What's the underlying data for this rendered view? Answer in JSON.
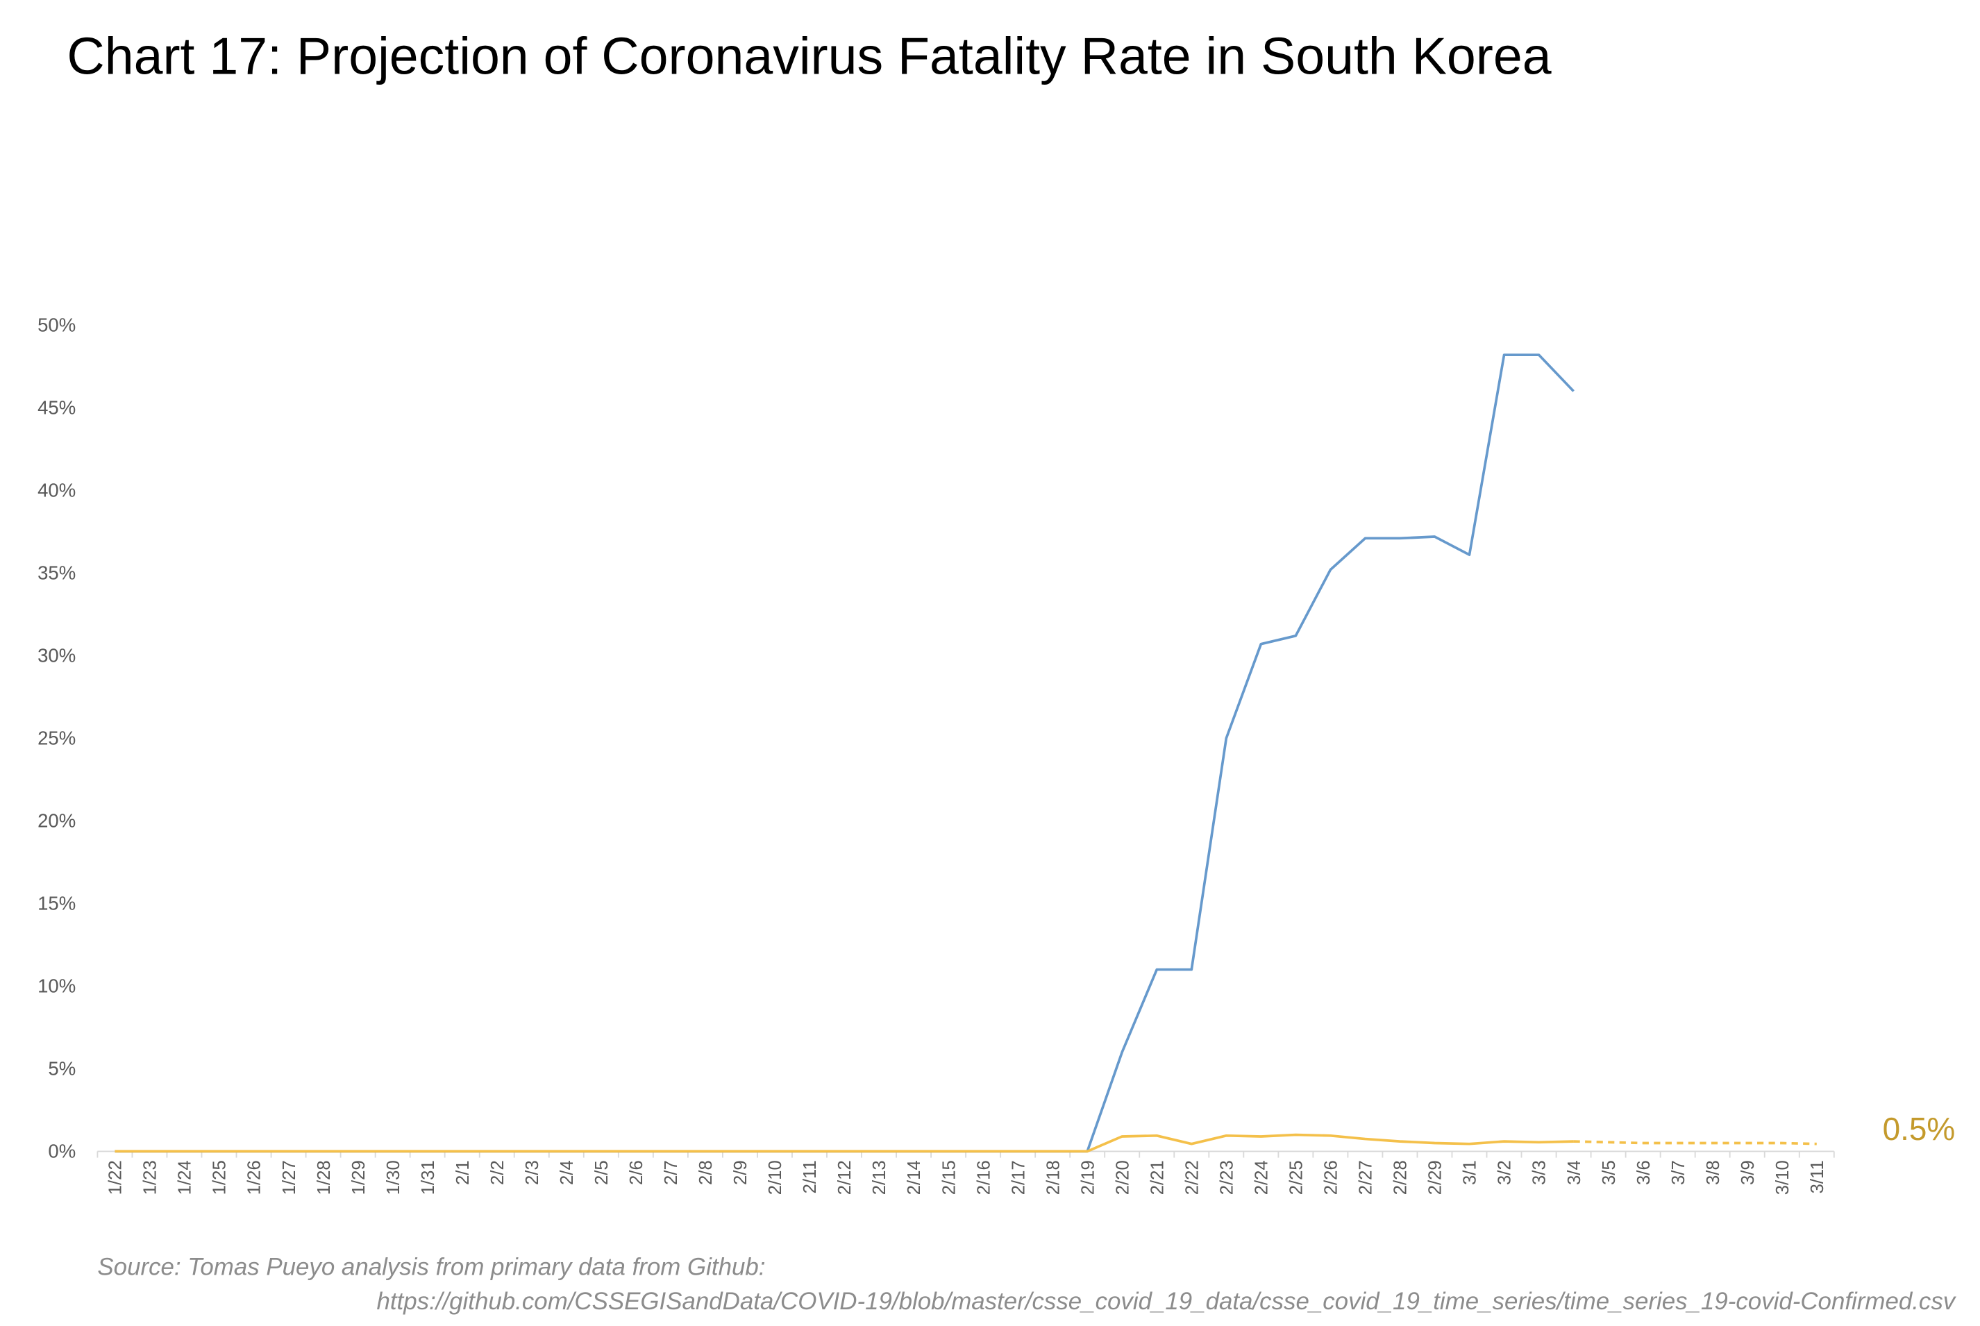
{
  "chart_data": {
    "type": "line",
    "title": "Chart 17: Projection of Coronavirus Fatality Rate in South Korea",
    "source": "Source: Tomas Pueyo analysis from primary data from Github:",
    "source_url": "https://github.com/CSSEGISandData/COVID-19/blob/master/csse_covid_19_data/csse_covid_19_time_series/time_series_19-covid-Confirmed.csv",
    "annotation": "0.5%",
    "categories": [
      "1/22",
      "1/23",
      "1/24",
      "1/25",
      "1/26",
      "1/27",
      "1/28",
      "1/29",
      "1/30",
      "1/31",
      "2/1",
      "2/2",
      "2/3",
      "2/4",
      "2/5",
      "2/6",
      "2/7",
      "2/8",
      "2/9",
      "2/10",
      "2/11",
      "2/12",
      "2/13",
      "2/14",
      "2/15",
      "2/16",
      "2/17",
      "2/18",
      "2/19",
      "2/20",
      "2/21",
      "2/22",
      "2/23",
      "2/24",
      "2/25",
      "2/26",
      "2/27",
      "2/28",
      "2/29",
      "3/1",
      "3/2",
      "3/3",
      "3/4",
      "3/5",
      "3/6",
      "3/7",
      "3/8",
      "3/9",
      "3/10",
      "3/11"
    ],
    "series": [
      {
        "color": "#6699cc",
        "dashed": false,
        "values": [
          0,
          0,
          0,
          0,
          0,
          0,
          0,
          0,
          0,
          0,
          0,
          0,
          0,
          0,
          0,
          0,
          0,
          0,
          0,
          0,
          0,
          0,
          0,
          0,
          0,
          0,
          0,
          0,
          0,
          6,
          11,
          11,
          25,
          30.7,
          31.2,
          35.2,
          37.1,
          37.1,
          37.2,
          36.1,
          48.2,
          48.2,
          46,
          null,
          null,
          null,
          null,
          null,
          null,
          null
        ]
      },
      {
        "color": "#f4c04a",
        "dashed": false,
        "values": [
          0,
          0,
          0,
          0,
          0,
          0,
          0,
          0,
          0,
          0,
          0,
          0,
          0,
          0,
          0,
          0,
          0,
          0,
          0,
          0,
          0,
          0,
          0,
          0,
          0,
          0,
          0,
          0,
          0,
          0.9,
          0.95,
          0.45,
          0.95,
          0.9,
          1.0,
          0.95,
          0.75,
          0.6,
          0.5,
          0.45,
          0.6,
          0.55,
          0.6,
          null,
          null,
          null,
          null,
          null,
          null,
          null
        ]
      },
      {
        "color": "#f4c04a",
        "dashed": true,
        "values": [
          null,
          null,
          null,
          null,
          null,
          null,
          null,
          null,
          null,
          null,
          null,
          null,
          null,
          null,
          null,
          null,
          null,
          null,
          null,
          null,
          null,
          null,
          null,
          null,
          null,
          null,
          null,
          null,
          null,
          null,
          null,
          null,
          null,
          null,
          null,
          null,
          null,
          null,
          null,
          null,
          null,
          null,
          0.6,
          0.55,
          0.5,
          0.5,
          0.5,
          0.5,
          0.5,
          0.45
        ]
      }
    ],
    "ylim": [
      0,
      50
    ],
    "yticks": [
      {
        "value": 0,
        "label": "0%"
      },
      {
        "value": 5,
        "label": "5%"
      },
      {
        "value": 10,
        "label": "10%"
      },
      {
        "value": 15,
        "label": "15%"
      },
      {
        "value": 20,
        "label": "20%"
      },
      {
        "value": 25,
        "label": "25%"
      },
      {
        "value": 30,
        "label": "30%"
      },
      {
        "value": 35,
        "label": "35%"
      },
      {
        "value": 40,
        "label": "40%"
      },
      {
        "value": 45,
        "label": "45%"
      },
      {
        "value": 50,
        "label": "50%"
      }
    ],
    "grid": false
  }
}
